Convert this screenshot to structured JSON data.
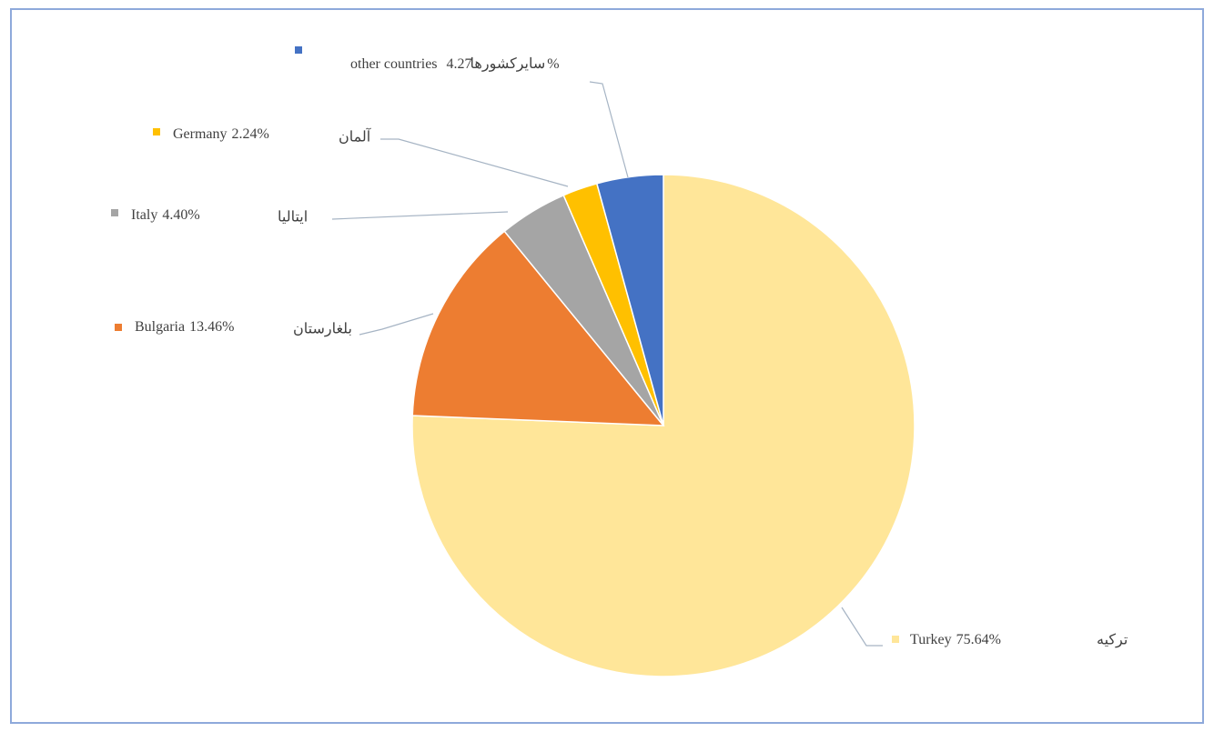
{
  "chart_data": {
    "type": "pie",
    "categories": [
      "Turkey",
      "Bulgaria",
      "Italy",
      "Germany",
      "other countries"
    ],
    "categories_fa": [
      "ترکیه",
      "بلغارستان",
      "ایتالیا",
      "آلمان",
      "سایرکشورها"
    ],
    "values": [
      75.64,
      13.46,
      4.4,
      2.24,
      4.27
    ],
    "value_labels": [
      "75.64%",
      "13.46%",
      "4.40%",
      "2.24%",
      "4.27%"
    ],
    "colors": [
      "#FFE699",
      "#ED7D31",
      "#A5A5A5",
      "#FFC000",
      "#4472C4"
    ]
  }
}
